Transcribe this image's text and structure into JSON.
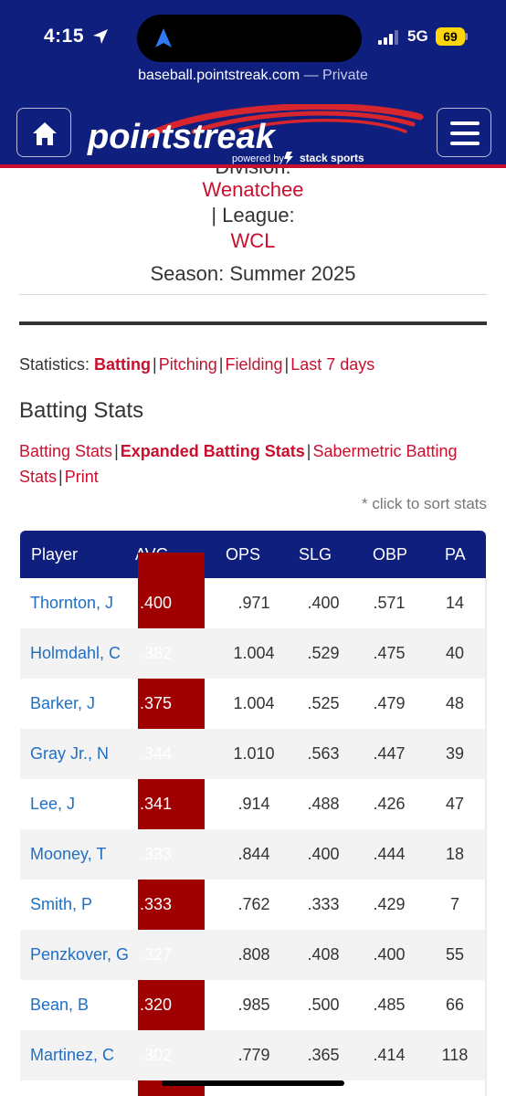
{
  "status_bar": {
    "time": "4:15",
    "network": "5G",
    "battery": "69"
  },
  "browser": {
    "url": "baseball.pointstreak.com",
    "privacy": "— Private"
  },
  "logo": {
    "wordmark": "pointstreak",
    "tagline": "powered by",
    "brand": "stack sports"
  },
  "header": {
    "division_label": "Division:",
    "division": "Wenatchee",
    "league_label": "| League:",
    "league": "WCL",
    "season": "Season: Summer 2025"
  },
  "statistics_nav": {
    "label": "Statistics:",
    "items": [
      "Batting",
      "Pitching",
      "Fielding",
      "Last 7 days"
    ]
  },
  "section_title": "Batting Stats",
  "stat_links": [
    "Batting Stats",
    "Expanded Batting Stats",
    "Sabermetric Batting Stats",
    "Print"
  ],
  "sort_note": "* click to sort stats",
  "table": {
    "columns": [
      "Player",
      "AVG",
      "OPS",
      "SLG",
      "OBP",
      "PA"
    ],
    "rows": [
      {
        "player": "Thornton, J",
        "avg": ".400",
        "ops": ".971",
        "slg": ".400",
        "obp": ".571",
        "pa": "14"
      },
      {
        "player": "Holmdahl, C",
        "avg": ".382",
        "ops": "1.004",
        "slg": ".529",
        "obp": ".475",
        "pa": "40"
      },
      {
        "player": "Barker, J",
        "avg": ".375",
        "ops": "1.004",
        "slg": ".525",
        "obp": ".479",
        "pa": "48"
      },
      {
        "player": "Gray Jr., N",
        "avg": ".344",
        "ops": "1.010",
        "slg": ".563",
        "obp": ".447",
        "pa": "39"
      },
      {
        "player": "Lee, J",
        "avg": ".341",
        "ops": ".914",
        "slg": ".488",
        "obp": ".426",
        "pa": "47"
      },
      {
        "player": "Mooney, T",
        "avg": ".333",
        "ops": ".844",
        "slg": ".400",
        "obp": ".444",
        "pa": "18"
      },
      {
        "player": "Smith, P",
        "avg": ".333",
        "ops": ".762",
        "slg": ".333",
        "obp": ".429",
        "pa": "7"
      },
      {
        "player": "Penzkover, G",
        "avg": ".327",
        "ops": ".808",
        "slg": ".408",
        "obp": ".400",
        "pa": "55"
      },
      {
        "player": "Bean, B",
        "avg": ".320",
        "ops": ".985",
        "slg": ".500",
        "obp": ".485",
        "pa": "66"
      },
      {
        "player": "Martinez, C",
        "avg": ".302",
        "ops": ".779",
        "slg": ".365",
        "obp": ".414",
        "pa": "118"
      }
    ]
  },
  "colors": {
    "navy": "#0f1f7d",
    "red": "#c8102e",
    "avg_column": "#a00000",
    "link_blue": "#1f6fc4"
  },
  "icons": [
    "location-arrow-icon",
    "home-icon",
    "hamburger-menu-icon",
    "signal-icon",
    "battery-icon"
  ]
}
